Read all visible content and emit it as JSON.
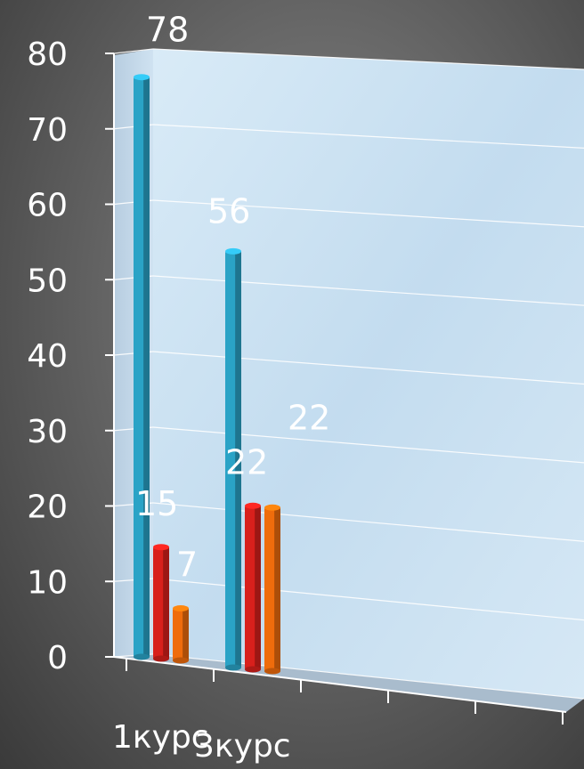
{
  "chart_data": {
    "type": "bar",
    "categories": [
      "1курс",
      "3курс"
    ],
    "series": [
      {
        "values": [
          78,
          56
        ]
      },
      {
        "values": [
          15,
          22
        ]
      },
      {
        "values": [
          7,
          22
        ]
      }
    ],
    "data_labels": [
      [
        "78",
        "56"
      ],
      [
        "15",
        "22"
      ],
      [
        "7",
        "22"
      ]
    ],
    "y_ticks": [
      "0",
      "10",
      "20",
      "30",
      "40",
      "50",
      "60",
      "70",
      "80"
    ],
    "ylim": [
      0,
      80
    ],
    "grid": true,
    "colors": {
      "series": [
        "#2aa3c6",
        "#d8201c",
        "#ef6c0c"
      ],
      "wall": "#c6dff0",
      "floor": "#9fb3c6",
      "text": "#ffffff"
    }
  }
}
